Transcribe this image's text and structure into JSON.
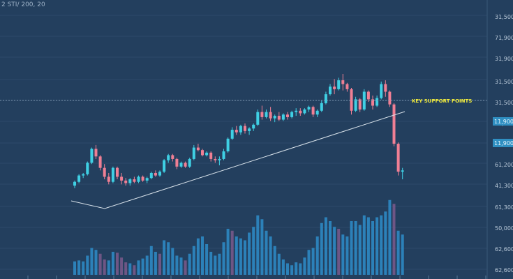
{
  "header": {
    "symbol_text": "2 STI/ 200, 20"
  },
  "colors": {
    "background": "#233f5e",
    "bull": "#3fd0e4",
    "bear": "#f07f94",
    "volume_bull": "#2e8dc9",
    "volume_bear": "#7b5b8c",
    "trendline": "#d8e2ea",
    "support_line": "#7c97b0",
    "annotation": "#f4ee3a",
    "badge": "#2f8fc2"
  },
  "chart_data": {
    "type": "candlestick",
    "price_axis_labels": [
      "31,500",
      "71,900",
      "31,900",
      "31,500",
      "31,500",
      "51,700",
      "61,200",
      "41,300",
      "61,300",
      "50,000",
      "62,600",
      "62,600"
    ],
    "price_badges": [
      "11,900",
      "11,900"
    ],
    "annotation": "KEY SUPPORT POINTS",
    "trendline": "rising support line under the lows, broken at the end",
    "horizontal_level": "dotted resistance line at the highs",
    "note": "candles read as price units on a relative scale (0 = chart low, 100 = chart high); volume relative 0-100",
    "candles": [
      [
        12,
        16,
        10,
        15
      ],
      [
        15,
        21,
        14,
        20
      ],
      [
        20,
        22,
        18,
        21
      ],
      [
        21,
        31,
        20,
        30
      ],
      [
        30,
        42,
        29,
        41
      ],
      [
        41,
        44,
        33,
        35
      ],
      [
        35,
        36,
        24,
        26
      ],
      [
        26,
        29,
        17,
        19
      ],
      [
        19,
        22,
        13,
        15
      ],
      [
        15,
        27,
        14,
        26
      ],
      [
        26,
        27,
        17,
        19
      ],
      [
        19,
        22,
        13,
        16
      ],
      [
        16,
        18,
        12,
        14
      ],
      [
        14,
        18,
        12,
        17
      ],
      [
        17,
        19,
        14,
        15
      ],
      [
        15,
        20,
        14,
        19
      ],
      [
        19,
        20,
        15,
        16
      ],
      [
        16,
        19,
        14,
        18
      ],
      [
        18,
        23,
        17,
        22
      ],
      [
        22,
        24,
        19,
        20
      ],
      [
        20,
        24,
        19,
        23
      ],
      [
        23,
        33,
        22,
        32
      ],
      [
        32,
        37,
        30,
        36
      ],
      [
        36,
        37,
        31,
        33
      ],
      [
        33,
        34,
        25,
        27
      ],
      [
        27,
        31,
        26,
        30
      ],
      [
        30,
        31,
        26,
        27
      ],
      [
        27,
        34,
        26,
        33
      ],
      [
        33,
        44,
        32,
        42
      ],
      [
        42,
        45,
        39,
        40
      ],
      [
        40,
        41,
        35,
        36
      ],
      [
        36,
        39,
        35,
        38
      ],
      [
        38,
        39,
        31,
        33
      ],
      [
        33,
        35,
        30,
        32
      ],
      [
        32,
        35,
        28,
        33
      ],
      [
        33,
        41,
        32,
        39
      ],
      [
        39,
        50,
        38,
        49
      ],
      [
        49,
        58,
        48,
        56
      ],
      [
        56,
        59,
        52,
        54
      ],
      [
        54,
        60,
        52,
        59
      ],
      [
        59,
        61,
        53,
        55
      ],
      [
        55,
        58,
        52,
        57
      ],
      [
        57,
        61,
        55,
        60
      ],
      [
        60,
        72,
        59,
        70
      ],
      [
        70,
        75,
        64,
        66
      ],
      [
        66,
        72,
        65,
        70
      ],
      [
        70,
        74,
        63,
        65
      ],
      [
        65,
        68,
        62,
        67
      ],
      [
        67,
        70,
        63,
        64
      ],
      [
        64,
        69,
        63,
        68
      ],
      [
        68,
        70,
        64,
        66
      ],
      [
        66,
        71,
        65,
        70
      ],
      [
        70,
        73,
        67,
        71
      ],
      [
        71,
        73,
        67,
        69
      ],
      [
        69,
        73,
        68,
        72
      ],
      [
        72,
        75,
        70,
        74
      ],
      [
        74,
        75,
        66,
        68
      ],
      [
        68,
        72,
        66,
        71
      ],
      [
        71,
        79,
        70,
        77
      ],
      [
        77,
        86,
        76,
        84
      ],
      [
        84,
        92,
        83,
        90
      ],
      [
        90,
        96,
        84,
        88
      ],
      [
        88,
        97,
        87,
        95
      ],
      [
        95,
        100,
        87,
        92
      ],
      [
        92,
        93,
        86,
        88
      ],
      [
        88,
        89,
        68,
        71
      ],
      [
        71,
        82,
        70,
        80
      ],
      [
        80,
        81,
        70,
        72
      ],
      [
        72,
        88,
        71,
        86
      ],
      [
        86,
        87,
        78,
        80
      ],
      [
        80,
        83,
        72,
        75
      ],
      [
        75,
        83,
        74,
        81
      ],
      [
        81,
        94,
        80,
        92
      ],
      [
        92,
        95,
        82,
        86
      ],
      [
        86,
        87,
        74,
        76
      ],
      [
        76,
        77,
        43,
        45
      ],
      [
        45,
        46,
        20,
        23
      ],
      [
        23,
        26,
        17,
        24
      ]
    ],
    "volume": [
      [
        14,
        1
      ],
      [
        15,
        1
      ],
      [
        14,
        1
      ],
      [
        20,
        1
      ],
      [
        28,
        1
      ],
      [
        26,
        1
      ],
      [
        22,
        0
      ],
      [
        16,
        0
      ],
      [
        15,
        1
      ],
      [
        24,
        1
      ],
      [
        23,
        0
      ],
      [
        18,
        0
      ],
      [
        13,
        0
      ],
      [
        12,
        1
      ],
      [
        10,
        0
      ],
      [
        15,
        1
      ],
      [
        17,
        1
      ],
      [
        20,
        1
      ],
      [
        30,
        1
      ],
      [
        24,
        1
      ],
      [
        22,
        0
      ],
      [
        36,
        1
      ],
      [
        34,
        1
      ],
      [
        28,
        1
      ],
      [
        20,
        1
      ],
      [
        18,
        1
      ],
      [
        15,
        0
      ],
      [
        22,
        1
      ],
      [
        30,
        1
      ],
      [
        38,
        1
      ],
      [
        40,
        1
      ],
      [
        32,
        1
      ],
      [
        24,
        1
      ],
      [
        20,
        1
      ],
      [
        22,
        1
      ],
      [
        34,
        1
      ],
      [
        48,
        1
      ],
      [
        46,
        0
      ],
      [
        40,
        1
      ],
      [
        38,
        1
      ],
      [
        36,
        1
      ],
      [
        44,
        1
      ],
      [
        50,
        1
      ],
      [
        62,
        1
      ],
      [
        58,
        1
      ],
      [
        46,
        1
      ],
      [
        40,
        1
      ],
      [
        30,
        1
      ],
      [
        22,
        1
      ],
      [
        16,
        1
      ],
      [
        12,
        1
      ],
      [
        10,
        1
      ],
      [
        13,
        1
      ],
      [
        12,
        1
      ],
      [
        18,
        1
      ],
      [
        26,
        1
      ],
      [
        28,
        1
      ],
      [
        40,
        1
      ],
      [
        54,
        1
      ],
      [
        60,
        1
      ],
      [
        56,
        1
      ],
      [
        50,
        1
      ],
      [
        48,
        0
      ],
      [
        42,
        1
      ],
      [
        40,
        1
      ],
      [
        56,
        1
      ],
      [
        56,
        1
      ],
      [
        52,
        1
      ],
      [
        62,
        1
      ],
      [
        60,
        1
      ],
      [
        56,
        1
      ],
      [
        60,
        1
      ],
      [
        62,
        1
      ],
      [
        66,
        1
      ],
      [
        78,
        1
      ],
      [
        74,
        0
      ],
      [
        46,
        1
      ],
      [
        42,
        1
      ]
    ]
  }
}
